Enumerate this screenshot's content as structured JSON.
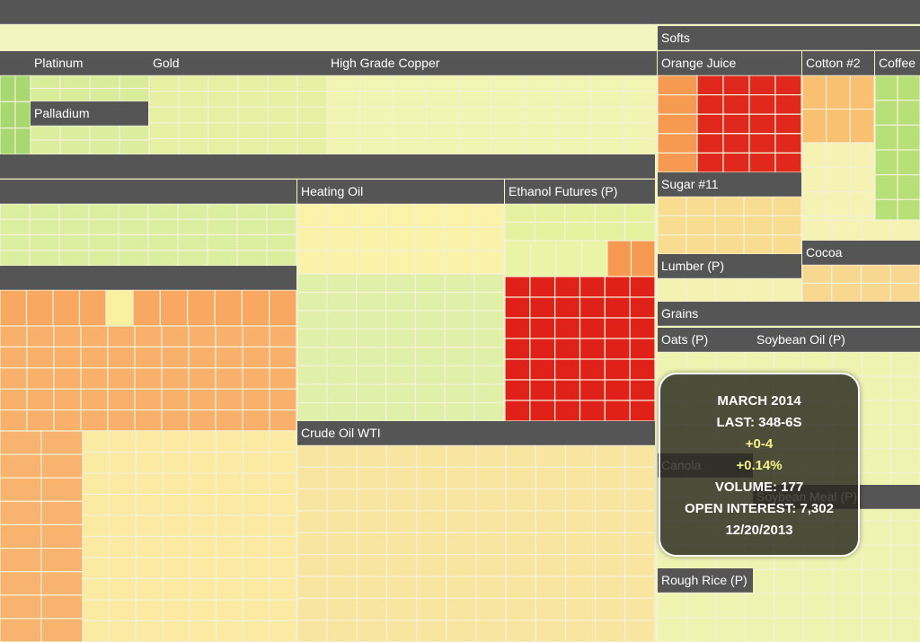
{
  "labels": [
    "Softs",
    "Platinum",
    "Gold",
    "High Grade Copper",
    "Orange Juice",
    "Cotton #2",
    "Coffee",
    "Palladium",
    "Heating Oil",
    "Ethanol Futures (P)",
    "Sugar #11",
    "Cocoa",
    "Lumber (P)",
    "Grains",
    "Oats (P)",
    "Soybean Oil (P)",
    "Crude Oil WTI",
    "Canola",
    "Soybean Meal (P)",
    "Rough Rice (P)"
  ],
  "tooltip": {
    "contract": "MARCH 2014",
    "last": "LAST: 348-6S",
    "change": "+0-4",
    "change_pct": "+0.14%",
    "volume": "VOLUME: 177",
    "open_interest": "OPEN INTEREST: 7,302",
    "date": "12/20/2013"
  }
}
